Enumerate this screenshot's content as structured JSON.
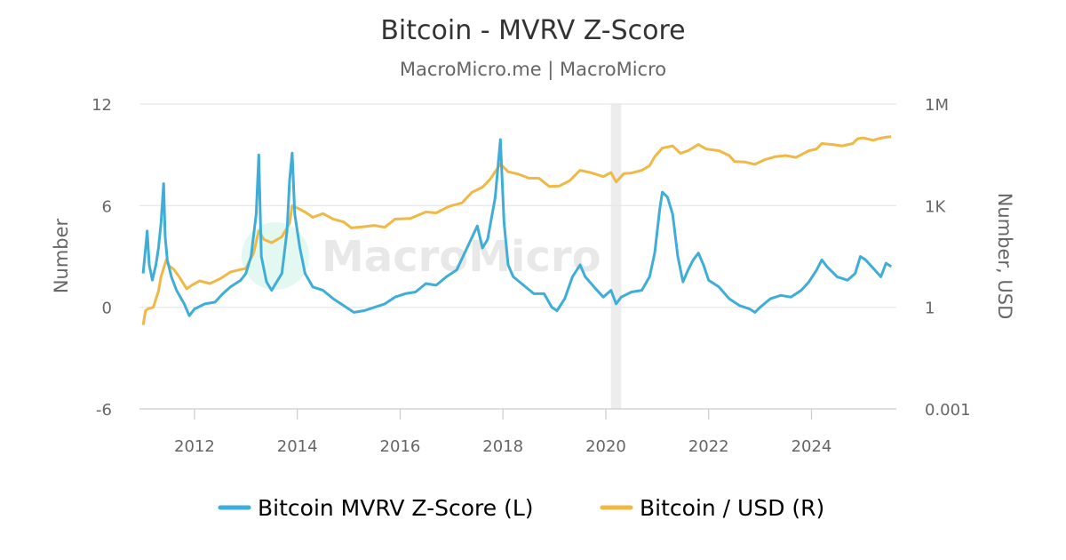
{
  "chart_data": {
    "type": "line",
    "title": "Bitcoin - MVRV Z-Score",
    "subtitle": "MacroMicro.me | MacroMicro",
    "watermark": "MacroMicro",
    "x_ticks": [
      "2012",
      "2014",
      "2016",
      "2018",
      "2020",
      "2022",
      "2024"
    ],
    "x_range": [
      2010.93,
      2025.65
    ],
    "shaded_period": [
      2020.1,
      2020.3
    ],
    "left_axis": {
      "title": "Number",
      "range": [
        -6,
        12
      ],
      "ticks": [
        "12",
        "6",
        "0",
        "-6"
      ]
    },
    "right_axis": {
      "title": "Number, USD",
      "scale": "log",
      "ticks": [
        "1M",
        "1K",
        "1",
        "0.001"
      ]
    },
    "grid": true,
    "legend_position": "bottom",
    "colors": {
      "zscore": "#3eaed8",
      "price": "#f0b845",
      "grid": "#e6e6e6",
      "shade": "#ededed"
    },
    "series": [
      {
        "name": "Bitcoin MVRV Z-Score (L)",
        "axis": "left",
        "points": [
          [
            2011.0,
            2.0
          ],
          [
            2011.05,
            3.5
          ],
          [
            2011.08,
            4.5
          ],
          [
            2011.12,
            2.5
          ],
          [
            2011.18,
            1.6
          ],
          [
            2011.25,
            2.5
          ],
          [
            2011.3,
            3.5
          ],
          [
            2011.35,
            5.0
          ],
          [
            2011.4,
            7.3
          ],
          [
            2011.43,
            4.2
          ],
          [
            2011.47,
            2.8
          ],
          [
            2011.55,
            1.8
          ],
          [
            2011.65,
            1.0
          ],
          [
            2011.8,
            0.2
          ],
          [
            2011.9,
            -0.5
          ],
          [
            2012.0,
            -0.1
          ],
          [
            2012.2,
            0.2
          ],
          [
            2012.4,
            0.3
          ],
          [
            2012.55,
            0.8
          ],
          [
            2012.7,
            1.2
          ],
          [
            2012.9,
            1.6
          ],
          [
            2013.0,
            2.0
          ],
          [
            2013.1,
            3.0
          ],
          [
            2013.2,
            5.5
          ],
          [
            2013.25,
            9.0
          ],
          [
            2013.3,
            3.0
          ],
          [
            2013.4,
            1.5
          ],
          [
            2013.5,
            1.0
          ],
          [
            2013.6,
            1.5
          ],
          [
            2013.7,
            2.0
          ],
          [
            2013.8,
            4.5
          ],
          [
            2013.85,
            7.5
          ],
          [
            2013.9,
            9.1
          ],
          [
            2013.95,
            5.5
          ],
          [
            2014.05,
            3.5
          ],
          [
            2014.15,
            2.0
          ],
          [
            2014.3,
            1.2
          ],
          [
            2014.5,
            1.0
          ],
          [
            2014.7,
            0.5
          ],
          [
            2014.9,
            0.1
          ],
          [
            2015.1,
            -0.3
          ],
          [
            2015.3,
            -0.2
          ],
          [
            2015.5,
            0.0
          ],
          [
            2015.7,
            0.2
          ],
          [
            2015.9,
            0.6
          ],
          [
            2016.1,
            0.8
          ],
          [
            2016.3,
            0.9
          ],
          [
            2016.5,
            1.4
          ],
          [
            2016.7,
            1.3
          ],
          [
            2016.9,
            1.8
          ],
          [
            2017.1,
            2.2
          ],
          [
            2017.3,
            3.5
          ],
          [
            2017.5,
            4.8
          ],
          [
            2017.6,
            3.5
          ],
          [
            2017.7,
            4.0
          ],
          [
            2017.85,
            6.5
          ],
          [
            2017.95,
            9.9
          ],
          [
            2018.02,
            5.0
          ],
          [
            2018.1,
            2.5
          ],
          [
            2018.2,
            1.8
          ],
          [
            2018.4,
            1.3
          ],
          [
            2018.6,
            0.8
          ],
          [
            2018.8,
            0.8
          ],
          [
            2018.95,
            0.0
          ],
          [
            2019.05,
            -0.2
          ],
          [
            2019.2,
            0.5
          ],
          [
            2019.35,
            1.8
          ],
          [
            2019.5,
            2.5
          ],
          [
            2019.6,
            1.8
          ],
          [
            2019.8,
            1.1
          ],
          [
            2019.95,
            0.6
          ],
          [
            2020.1,
            1.0
          ],
          [
            2020.2,
            0.2
          ],
          [
            2020.3,
            0.6
          ],
          [
            2020.5,
            0.9
          ],
          [
            2020.7,
            1.0
          ],
          [
            2020.85,
            1.8
          ],
          [
            2020.95,
            3.2
          ],
          [
            2021.05,
            5.8
          ],
          [
            2021.1,
            6.8
          ],
          [
            2021.2,
            6.5
          ],
          [
            2021.3,
            5.5
          ],
          [
            2021.4,
            3.0
          ],
          [
            2021.5,
            1.5
          ],
          [
            2021.6,
            2.2
          ],
          [
            2021.7,
            2.8
          ],
          [
            2021.8,
            3.2
          ],
          [
            2021.9,
            2.5
          ],
          [
            2022.0,
            1.6
          ],
          [
            2022.2,
            1.2
          ],
          [
            2022.4,
            0.5
          ],
          [
            2022.6,
            0.1
          ],
          [
            2022.8,
            -0.1
          ],
          [
            2022.9,
            -0.3
          ],
          [
            2023.0,
            0.0
          ],
          [
            2023.2,
            0.5
          ],
          [
            2023.4,
            0.7
          ],
          [
            2023.6,
            0.6
          ],
          [
            2023.8,
            1.0
          ],
          [
            2023.95,
            1.5
          ],
          [
            2024.1,
            2.2
          ],
          [
            2024.2,
            2.8
          ],
          [
            2024.3,
            2.4
          ],
          [
            2024.5,
            1.8
          ],
          [
            2024.7,
            1.6
          ],
          [
            2024.85,
            2.0
          ],
          [
            2024.95,
            3.0
          ],
          [
            2025.05,
            2.8
          ],
          [
            2025.2,
            2.3
          ],
          [
            2025.35,
            1.8
          ],
          [
            2025.45,
            2.6
          ],
          [
            2025.55,
            2.4
          ]
        ]
      },
      {
        "name": "Bitcoin / USD (R)",
        "axis": "right",
        "points": [
          [
            2011.0,
            0.3
          ],
          [
            2011.05,
            0.8
          ],
          [
            2011.1,
            0.9
          ],
          [
            2011.2,
            1.0
          ],
          [
            2011.3,
            3.0
          ],
          [
            2011.35,
            8.0
          ],
          [
            2011.45,
            25
          ],
          [
            2011.5,
            17
          ],
          [
            2011.6,
            13
          ],
          [
            2011.7,
            8
          ],
          [
            2011.85,
            3.5
          ],
          [
            2011.95,
            4.5
          ],
          [
            2012.1,
            6
          ],
          [
            2012.3,
            5
          ],
          [
            2012.5,
            7
          ],
          [
            2012.7,
            11
          ],
          [
            2012.9,
            13
          ],
          [
            2013.0,
            14
          ],
          [
            2013.15,
            40
          ],
          [
            2013.25,
            180
          ],
          [
            2013.35,
            100
          ],
          [
            2013.5,
            80
          ],
          [
            2013.7,
            120
          ],
          [
            2013.85,
            300
          ],
          [
            2013.9,
            1000
          ],
          [
            2014.0,
            850
          ],
          [
            2014.15,
            650
          ],
          [
            2014.3,
            450
          ],
          [
            2014.5,
            580
          ],
          [
            2014.7,
            400
          ],
          [
            2014.9,
            330
          ],
          [
            2015.05,
            220
          ],
          [
            2015.3,
            240
          ],
          [
            2015.5,
            260
          ],
          [
            2015.7,
            230
          ],
          [
            2015.9,
            400
          ],
          [
            2016.2,
            420
          ],
          [
            2016.5,
            650
          ],
          [
            2016.7,
            610
          ],
          [
            2016.95,
            950
          ],
          [
            2017.2,
            1200
          ],
          [
            2017.4,
            2500
          ],
          [
            2017.6,
            3500
          ],
          [
            2017.75,
            6000
          ],
          [
            2017.95,
            17000
          ],
          [
            2018.1,
            10000
          ],
          [
            2018.3,
            8500
          ],
          [
            2018.5,
            6500
          ],
          [
            2018.7,
            6400
          ],
          [
            2018.9,
            3700
          ],
          [
            2019.1,
            3800
          ],
          [
            2019.3,
            5500
          ],
          [
            2019.5,
            11000
          ],
          [
            2019.7,
            9500
          ],
          [
            2019.95,
            7200
          ],
          [
            2020.1,
            9500
          ],
          [
            2020.2,
            5000
          ],
          [
            2020.35,
            8800
          ],
          [
            2020.5,
            9200
          ],
          [
            2020.7,
            11000
          ],
          [
            2020.85,
            15000
          ],
          [
            2020.95,
            28000
          ],
          [
            2021.1,
            50000
          ],
          [
            2021.3,
            58000
          ],
          [
            2021.45,
            35000
          ],
          [
            2021.6,
            42000
          ],
          [
            2021.8,
            64000
          ],
          [
            2021.95,
            47000
          ],
          [
            2022.2,
            42000
          ],
          [
            2022.4,
            30000
          ],
          [
            2022.5,
            20000
          ],
          [
            2022.7,
            19500
          ],
          [
            2022.9,
            16500
          ],
          [
            2023.1,
            23000
          ],
          [
            2023.3,
            28000
          ],
          [
            2023.5,
            30000
          ],
          [
            2023.7,
            26500
          ],
          [
            2023.95,
            42000
          ],
          [
            2024.1,
            47000
          ],
          [
            2024.2,
            68000
          ],
          [
            2024.4,
            64000
          ],
          [
            2024.6,
            58000
          ],
          [
            2024.8,
            68000
          ],
          [
            2024.9,
            95000
          ],
          [
            2025.0,
            100000
          ],
          [
            2025.2,
            85000
          ],
          [
            2025.3,
            95000
          ],
          [
            2025.45,
            105000
          ],
          [
            2025.55,
            108000
          ]
        ]
      }
    ]
  },
  "legend": {
    "zscore_label": "Bitcoin MVRV Z-Score (L)",
    "price_label": "Bitcoin / USD (R)"
  }
}
